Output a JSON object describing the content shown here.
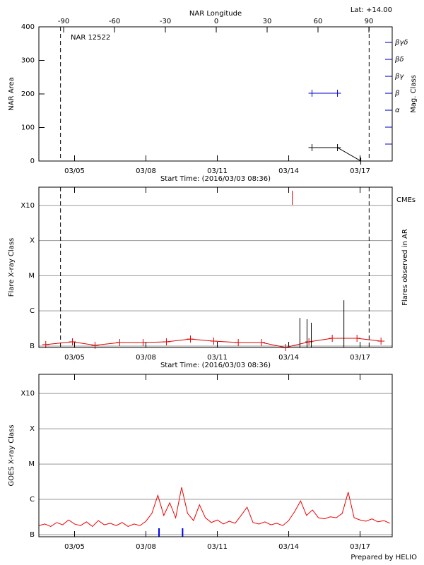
{
  "chart_data": [
    {
      "type": "line",
      "title": "NAR 12522",
      "annotation": "Lat: +14.00",
      "x2label": "NAR Longitude",
      "x2lim": [
        -104.6,
        103.75
      ],
      "x2ticks": [
        -90,
        -60,
        -30,
        0,
        30,
        60,
        90
      ],
      "xlabel": "Start Time: (2016/03/03 08:36)",
      "xlim": [
        3.5,
        18.35
      ],
      "xticks": [
        {
          "value": 5,
          "label": "03/05"
        },
        {
          "value": 8,
          "label": "03/08"
        },
        {
          "value": 11,
          "label": "03/11"
        },
        {
          "value": 14,
          "label": "03/14"
        },
        {
          "value": 17,
          "label": "03/17"
        }
      ],
      "ylabel": "NAR Area",
      "ylim": [
        0,
        400
      ],
      "yticks": [
        0,
        100,
        200,
        300,
        400
      ],
      "y2label": "Mag. Class",
      "y2lim": [
        0,
        7.92
      ],
      "y2color": "#0000cc",
      "y2ticks": [
        {
          "value": 3,
          "label": "α"
        },
        {
          "value": 4,
          "label": "β"
        },
        {
          "value": 5,
          "label": "βγ"
        },
        {
          "value": 6,
          "label": "βδ"
        },
        {
          "value": 7,
          "label": "βγδ"
        }
      ],
      "y2minor": [
        1,
        2
      ],
      "vlines": [
        4.41,
        17.38
      ],
      "series": [
        {
          "color": "#000000",
          "x": [
            14.98,
            16.05,
            17.03
          ],
          "values": [
            40,
            40,
            0
          ]
        },
        {
          "color": "#0000cc",
          "axis": "y2",
          "x": [
            14.98,
            16.05
          ],
          "values": [
            4,
            4
          ]
        }
      ]
    },
    {
      "type": "line",
      "log": true,
      "grid": true,
      "xlabel": "Start Time: (2016/03/03 08:36)",
      "xlim": [
        3.5,
        18.35
      ],
      "xticks": [
        {
          "value": 5,
          "label": "03/05"
        },
        {
          "value": 8,
          "label": "03/08"
        },
        {
          "value": 11,
          "label": "03/11"
        },
        {
          "value": 14,
          "label": "03/14"
        },
        {
          "value": 17,
          "label": "03/17"
        }
      ],
      "ylabel": "Flare X-ray Class",
      "y2label": "Flares observed in AR",
      "ylim": [
        9.1e-08,
        0.0033
      ],
      "yticks": [
        {
          "value": 1e-07,
          "label": "B"
        },
        {
          "value": 1e-06,
          "label": "C"
        },
        {
          "value": 1e-05,
          "label": "M"
        },
        {
          "value": 0.0001,
          "label": "X"
        },
        {
          "value": 0.001,
          "label": "X10"
        }
      ],
      "vlines": [
        4.41,
        17.38
      ],
      "series": [
        {
          "color": "#dd0000",
          "x": [
            3.79,
            4.91,
            5.86,
            6.9,
            7.88,
            8.86,
            9.87,
            10.85,
            11.88,
            12.86,
            13.87,
            14.85,
            15.83,
            16.87,
            17.88
          ],
          "values": [
            1.1e-07,
            1.32e-07,
            1.05e-07,
            1.26e-07,
            1.26e-07,
            1.32e-07,
            1.58e-07,
            1.38e-07,
            1.26e-07,
            1.26e-07,
            9.1e-08,
            1.32e-07,
            1.66e-07,
            1.66e-07,
            1.38e-07
          ]
        }
      ],
      "flares": {
        "color": "#000000",
        "x": [
          14.47,
          14.77,
          14.95,
          16.32
        ],
        "values": [
          6.3e-07,
          5.8e-07,
          4.6e-07,
          2e-06
        ]
      },
      "cmes": {
        "label": "CMEs",
        "color": "#dd0000",
        "x": [
          14.15
        ]
      }
    },
    {
      "type": "line",
      "log": true,
      "grid": true,
      "xlim": [
        3.5,
        18.35
      ],
      "xticks": [
        {
          "value": 5,
          "label": "03/05"
        },
        {
          "value": 8,
          "label": "03/08"
        },
        {
          "value": 11,
          "label": "03/11"
        },
        {
          "value": 14,
          "label": "03/14"
        },
        {
          "value": 17,
          "label": "03/17"
        }
      ],
      "ylabel": "GOES X-ray Class",
      "ylim": [
        8.7e-08,
        0.0035
      ],
      "yticks": [
        {
          "value": 1e-07,
          "label": "B"
        },
        {
          "value": 1e-06,
          "label": "C"
        },
        {
          "value": 1e-05,
          "label": "M"
        },
        {
          "value": 0.0001,
          "label": "X"
        },
        {
          "value": 0.001,
          "label": "X10"
        }
      ],
      "series": [
        {
          "color": "#ee0000",
          "marker": false,
          "x": [
            3.5,
            3.75,
            4.0,
            4.25,
            4.5,
            4.75,
            5.0,
            5.25,
            5.5,
            5.75,
            6.0,
            6.25,
            6.5,
            6.75,
            7.0,
            7.25,
            7.5,
            7.75,
            8.0,
            8.25,
            8.5,
            8.75,
            9.0,
            9.25,
            9.5,
            9.75,
            10.0,
            10.25,
            10.5,
            10.75,
            11.0,
            11.25,
            11.5,
            11.75,
            12.0,
            12.25,
            12.5,
            12.75,
            13.0,
            13.25,
            13.5,
            13.75,
            14.0,
            14.25,
            14.5,
            14.75,
            15.0,
            15.25,
            15.5,
            15.75,
            16.0,
            16.25,
            16.5,
            16.75,
            17.0,
            17.25,
            17.5,
            17.75,
            18.0,
            18.25
          ],
          "values": [
            1.8e-07,
            2e-07,
            1.7e-07,
            2.2e-07,
            1.9e-07,
            2.6e-07,
            2e-07,
            1.8e-07,
            2.3e-07,
            1.7e-07,
            2.5e-07,
            1.9e-07,
            2.1e-07,
            1.8e-07,
            2.2e-07,
            1.7e-07,
            2e-07,
            1.8e-07,
            2.4e-07,
            4e-07,
            1.3e-06,
            3.5e-07,
            8e-07,
            3e-07,
            2.2e-06,
            4e-07,
            2.5e-07,
            7e-07,
            3e-07,
            2.2e-07,
            2.6e-07,
            2e-07,
            2.4e-07,
            2.1e-07,
            3.5e-07,
            6e-07,
            2.2e-07,
            2e-07,
            2.3e-07,
            1.9e-07,
            2.1e-07,
            1.8e-07,
            2.5e-07,
            4.5e-07,
            9e-07,
            3.5e-07,
            5e-07,
            3e-07,
            2.8e-07,
            3.2e-07,
            3e-07,
            4e-07,
            1.6e-06,
            3e-07,
            2.6e-07,
            2.4e-07,
            2.8e-07,
            2.3e-07,
            2.5e-07,
            2.1e-07
          ]
        }
      ],
      "gaps": {
        "color": "#0000ee",
        "x": [
          8.55,
          9.54
        ]
      }
    }
  ],
  "footer": "Prepared by HELIO"
}
